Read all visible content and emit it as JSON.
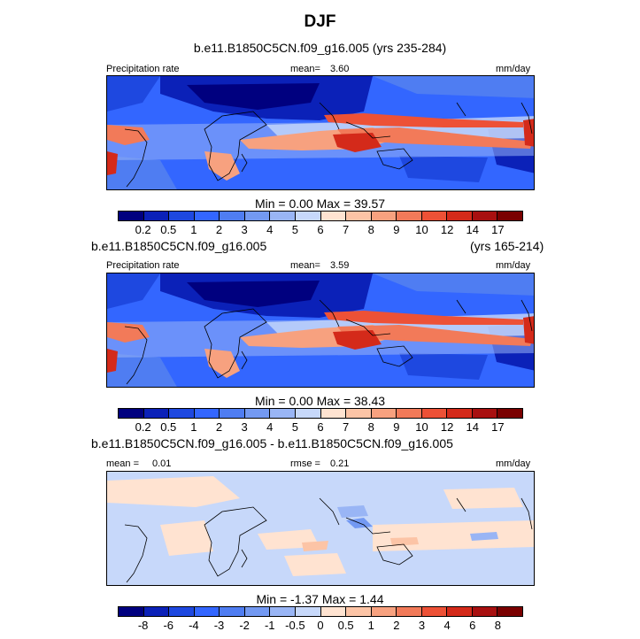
{
  "figure": {
    "title": "DJF",
    "colors_abs": [
      "#00007f",
      "#0b21b8",
      "#1e48e0",
      "#3366ff",
      "#4f7df2",
      "#7399f2",
      "#99b5f5",
      "#c7d8fa",
      "#ffe3d1",
      "#fcc4a6",
      "#f7a17f",
      "#f27a59",
      "#ed5136",
      "#d42a1a",
      "#a81010",
      "#7a0000"
    ],
    "colors_diff": [
      "#00007f",
      "#0b21b8",
      "#1e48e0",
      "#3366ff",
      "#4f7df2",
      "#7399f2",
      "#99b5f5",
      "#c7d8fa",
      "#ffe3d1",
      "#fcc4a6",
      "#f7a17f",
      "#f27a59",
      "#ed5136",
      "#d42a1a",
      "#a81010",
      "#7a0000"
    ]
  },
  "panel1": {
    "case": "b.e11.B1850C5CN.f09_g16.005 (yrs 235-284)",
    "variable": "Precipitation rate",
    "mean_label": "mean=",
    "mean_value": "3.60",
    "units": "mm/day",
    "minmax": "Min =   0.00 Max =  39.57",
    "ticks": [
      "0.2",
      "0.5",
      "1",
      "2",
      "3",
      "4",
      "5",
      "6",
      "7",
      "8",
      "9",
      "10",
      "12",
      "14",
      "17"
    ]
  },
  "panel2": {
    "case": "b.e11.B1850C5CN.f09_g16.005",
    "years": "(yrs 165-214)",
    "variable": "Precipitation rate",
    "mean_label": "mean=",
    "mean_value": "3.59",
    "units": "mm/day",
    "minmax": "Min =   0.00 Max =  38.43",
    "ticks": [
      "0.2",
      "0.5",
      "1",
      "2",
      "3",
      "4",
      "5",
      "6",
      "7",
      "8",
      "9",
      "10",
      "12",
      "14",
      "17"
    ]
  },
  "panel3": {
    "case": "b.e11.B1850C5CN.f09_g16.005 - b.e11.B1850C5CN.f09_g16.005",
    "mean_label": "mean =",
    "mean_value": "0.01",
    "rmse_label": "rmse =",
    "rmse_value": "0.21",
    "units": "mm/day",
    "minmax": "Min =  -1.37 Max =   1.44",
    "ticks": [
      "-8",
      "-6",
      "-4",
      "-3",
      "-2",
      "-1",
      "-0.5",
      "0",
      "0.5",
      "1",
      "2",
      "3",
      "4",
      "6",
      "8"
    ]
  }
}
